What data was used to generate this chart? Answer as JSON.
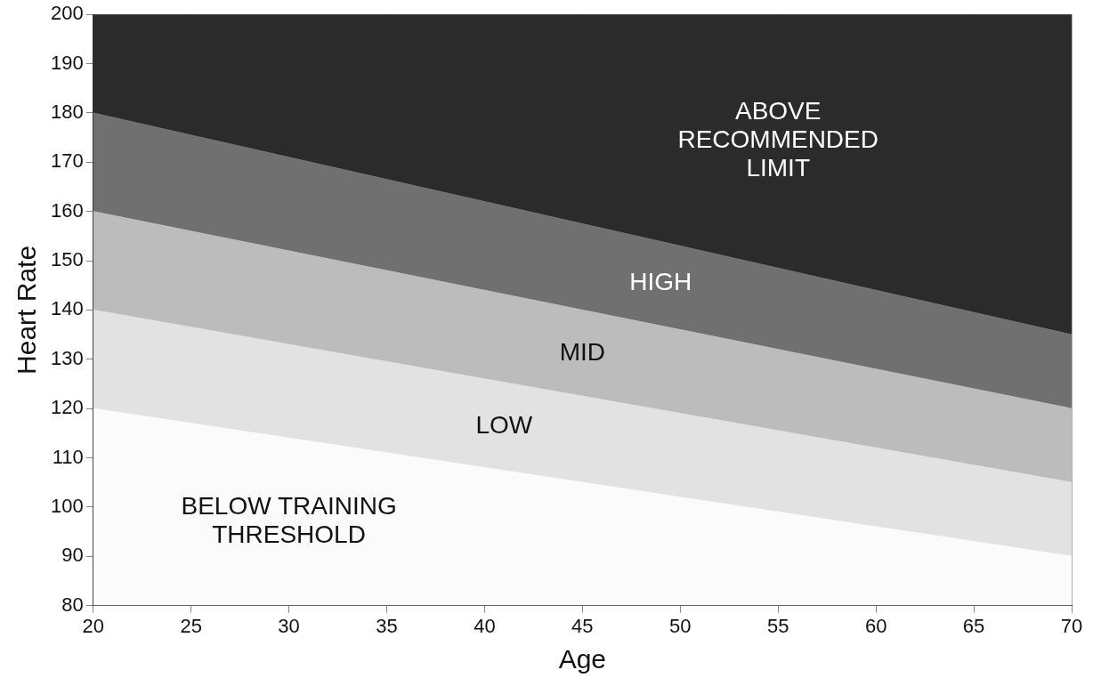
{
  "chart_data": {
    "type": "area",
    "xlabel": "Age",
    "ylabel": "Heart Rate",
    "x": [
      20,
      70
    ],
    "series": [
      {
        "name": "BELOW TRAINING THRESHOLD",
        "color": "#fbfbfb",
        "values": [
          120,
          90
        ]
      },
      {
        "name": "LOW",
        "color": "#e2e2e2",
        "values": [
          140,
          105
        ]
      },
      {
        "name": "MID",
        "color": "#bcbcbc",
        "values": [
          160,
          120
        ]
      },
      {
        "name": "HIGH",
        "color": "#707070",
        "values": [
          180,
          135
        ]
      },
      {
        "name": "ABOVE RECOMMENDED LIMIT",
        "color": "#2b2b2b",
        "values": [
          200,
          200
        ]
      }
    ],
    "xlim": [
      20,
      70
    ],
    "xticks": [
      20,
      25,
      30,
      35,
      40,
      45,
      50,
      55,
      60,
      65,
      70
    ],
    "ylim": [
      80,
      200
    ],
    "yticks": [
      80,
      90,
      100,
      110,
      120,
      130,
      140,
      150,
      160,
      170,
      180,
      190,
      200
    ],
    "grid": true,
    "legend": false,
    "marker": "none"
  }
}
